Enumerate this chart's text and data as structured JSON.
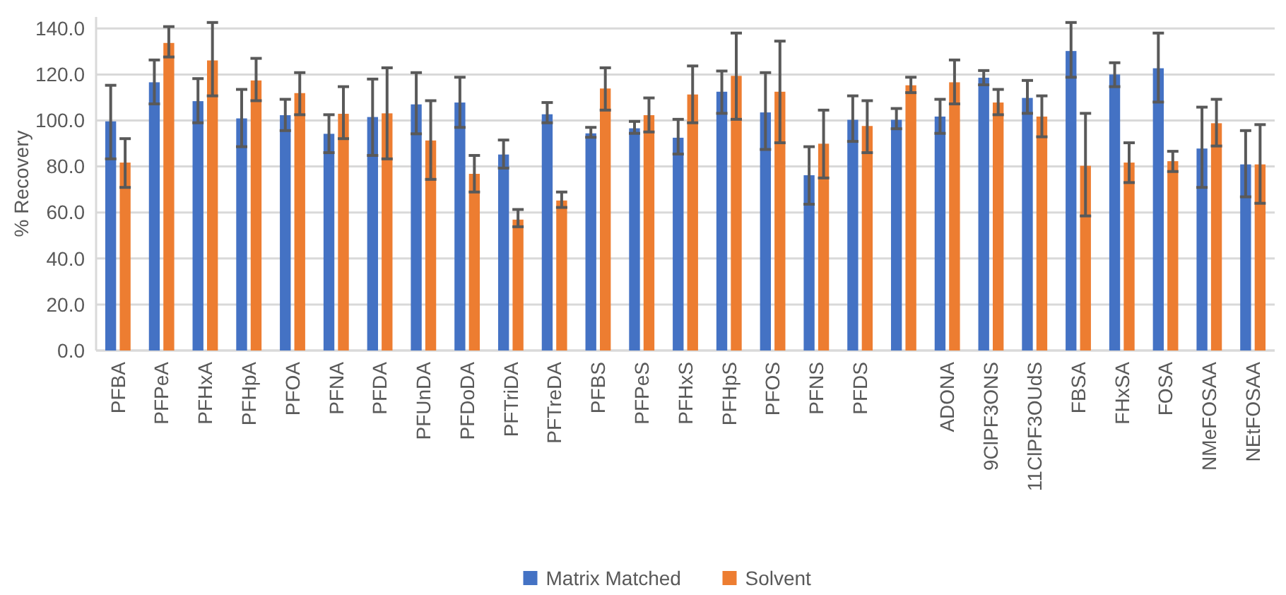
{
  "chart_data": {
    "type": "bar",
    "ylabel": "% Recovery",
    "categories": [
      "PFBA",
      "PFPeA",
      "PFHxA",
      "PFHpA",
      "PFOA",
      "PFNA",
      "PFDA",
      "PFUnDA",
      "PFDoDA",
      "PFTriDA",
      "PFTreDA",
      "PFBS",
      "PFPeS",
      "PFHxS",
      "PFHpS",
      "PFOS",
      "PFNS",
      "PFDS",
      null,
      "ADONA",
      "9ClPF3ONS",
      "11ClPF3OUdS",
      "FBSA",
      "FHxSA",
      "FOSA",
      "NMeFOSAA",
      "NEtFOSAA"
    ],
    "series": [
      {
        "name": "Matrix Matched",
        "color": "#4472c4",
        "values": [
          99.6,
          116.6,
          108.4,
          100.9,
          102.3,
          94.2,
          101.5,
          107.0,
          107.8,
          85.2,
          102.7,
          94.4,
          96.6,
          92.5,
          112.5,
          103.5,
          76.2,
          100.3,
          100.3,
          101.7,
          118.6,
          109.8,
          130.2,
          120.0,
          122.7,
          87.8,
          80.9
        ],
        "errors": [
          [
            83.3,
            115.3
          ],
          [
            107.2,
            126.3
          ],
          [
            99.0,
            118.2
          ],
          [
            88.6,
            113.5
          ],
          [
            95.6,
            109.2
          ],
          [
            86.0,
            102.5
          ],
          [
            84.8,
            118.0
          ],
          [
            94.2,
            120.8
          ],
          [
            97.0,
            118.8
          ],
          [
            79.3,
            91.5
          ],
          [
            99.0,
            107.8
          ],
          [
            92.7,
            97.0
          ],
          [
            94.4,
            99.6
          ],
          [
            85.4,
            100.5
          ],
          [
            103.1,
            121.5
          ],
          [
            87.4,
            120.8
          ],
          [
            63.6,
            88.6
          ],
          [
            90.9,
            110.7
          ],
          [
            96.4,
            105.2
          ],
          [
            94.4,
            109.2
          ],
          [
            115.5,
            121.7
          ],
          [
            103.1,
            117.4
          ],
          [
            118.8,
            142.6
          ],
          [
            114.7,
            125.1
          ],
          [
            108.0,
            138.0
          ],
          [
            70.9,
            105.8
          ],
          [
            66.8,
            95.6
          ]
        ]
      },
      {
        "name": "Solvent",
        "color": "#ed7d31",
        "values": [
          81.7,
          133.7,
          126.1,
          117.4,
          111.9,
          102.9,
          103.1,
          91.3,
          76.8,
          56.9,
          65.2,
          113.9,
          102.3,
          111.3,
          119.4,
          112.5,
          89.9,
          97.6,
          115.3,
          116.6,
          107.8,
          101.7,
          80.3,
          81.7,
          82.3,
          98.8,
          80.9
        ],
        "errors": [
          [
            70.9,
            92.1
          ],
          [
            127.6,
            140.8
          ],
          [
            110.7,
            142.6
          ],
          [
            108.6,
            127.0
          ],
          [
            102.5,
            120.8
          ],
          [
            92.1,
            114.7
          ],
          [
            83.3,
            122.9
          ],
          [
            74.4,
            108.6
          ],
          [
            68.9,
            84.8
          ],
          [
            53.8,
            61.3
          ],
          [
            62.2,
            68.9
          ],
          [
            104.5,
            122.9
          ],
          [
            95.0,
            109.8
          ],
          [
            99.0,
            123.7
          ],
          [
            100.5,
            138.0
          ],
          [
            90.3,
            134.5
          ],
          [
            75.0,
            104.5
          ],
          [
            86.0,
            108.6
          ],
          [
            112.1,
            118.8
          ],
          [
            107.2,
            126.3
          ],
          [
            102.5,
            113.5
          ],
          [
            92.9,
            110.7
          ],
          [
            58.5,
            103.1
          ],
          [
            73.0,
            90.3
          ],
          [
            77.8,
            86.6
          ],
          [
            88.9,
            109.2
          ],
          [
            64.0,
            98.2
          ]
        ]
      }
    ],
    "ylim": [
      0,
      145
    ],
    "yticks": [
      {
        "value": 0,
        "label": "0.0"
      },
      {
        "value": 20,
        "label": "20.0"
      },
      {
        "value": 40,
        "label": "40.0"
      },
      {
        "value": 60,
        "label": "60.0"
      },
      {
        "value": 80,
        "label": "80.0"
      },
      {
        "value": 100,
        "label": "100.0"
      },
      {
        "value": 120,
        "label": "120.0"
      },
      {
        "value": 140,
        "label": "140.0"
      }
    ],
    "grid": "y",
    "legend": "bottom"
  }
}
